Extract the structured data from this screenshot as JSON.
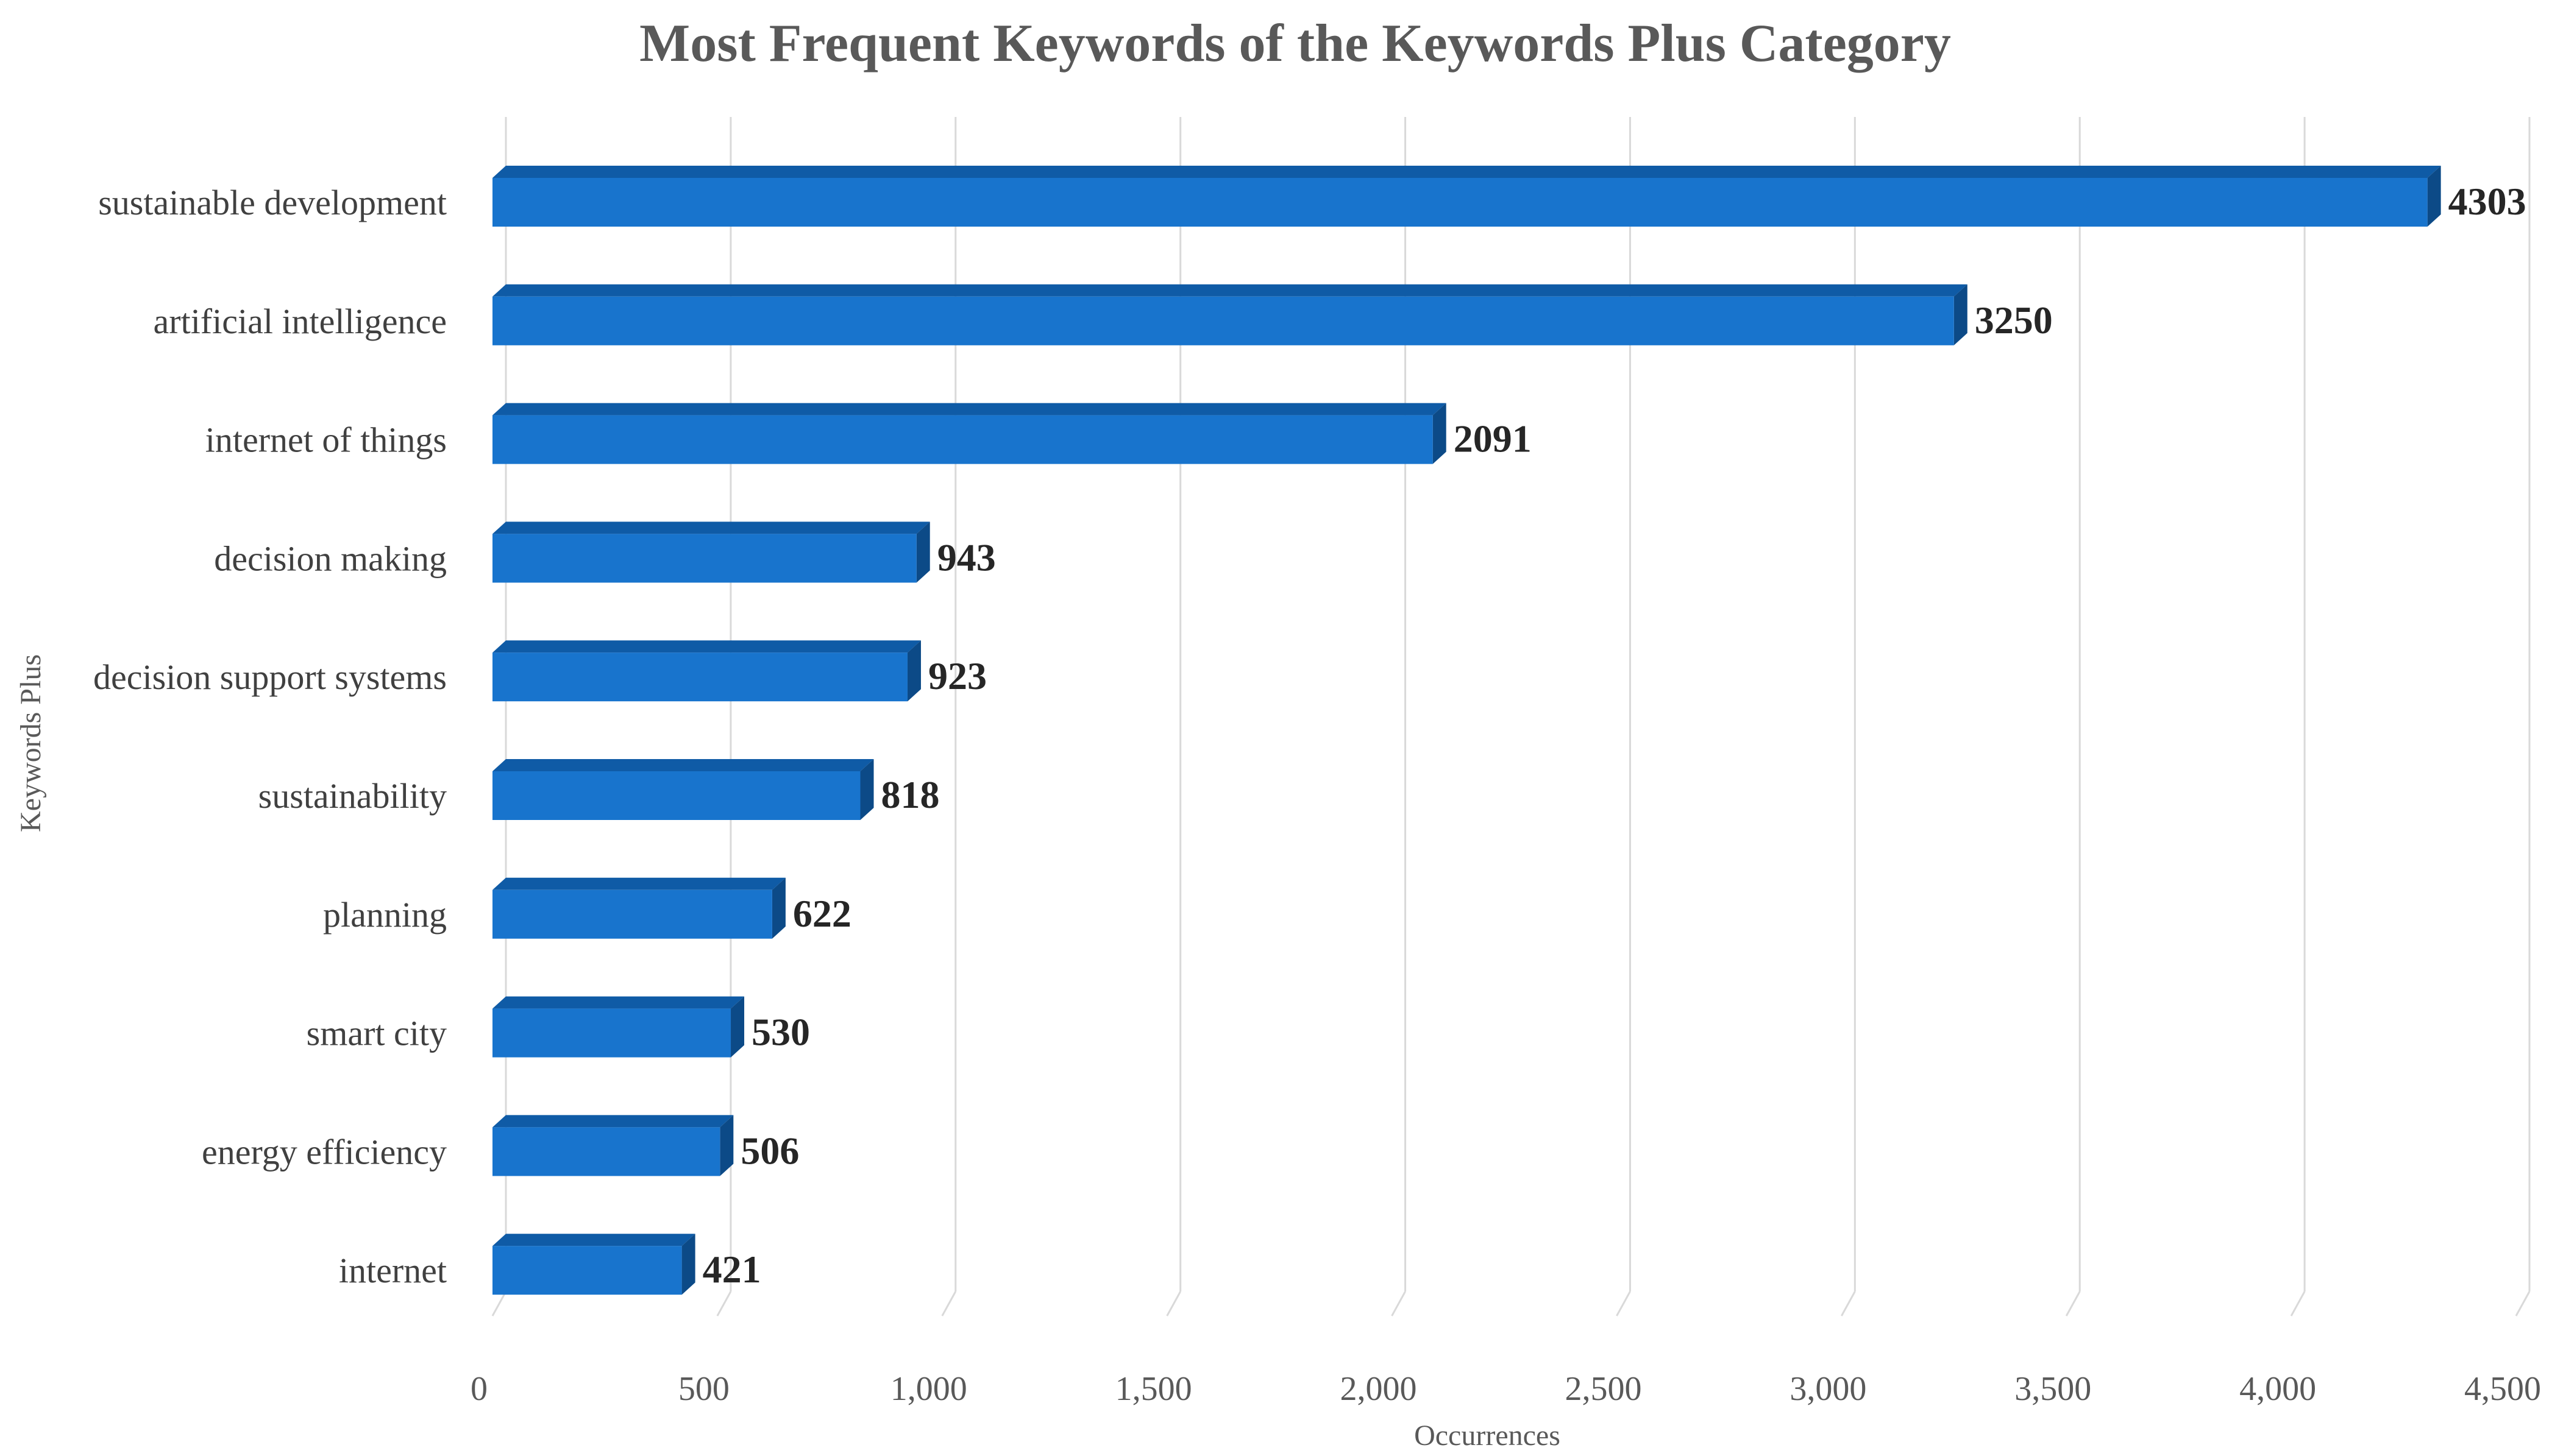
{
  "chart_data": {
    "type": "bar",
    "orientation": "horizontal",
    "title": "Most Frequent Keywords of the Keywords Plus Category",
    "xlabel": "Occurrences",
    "ylabel": "Keywords Plus",
    "xlim": [
      0,
      4500
    ],
    "xticks": [
      0,
      500,
      1000,
      1500,
      2000,
      2500,
      3000,
      3500,
      4000,
      4500
    ],
    "xtick_labels": [
      "0",
      "500",
      "1,000",
      "1,500",
      "2,000",
      "2,500",
      "3,000",
      "3,500",
      "4,000",
      "4,500"
    ],
    "grid": true,
    "legend": "none",
    "categories": [
      "sustainable development",
      "artificial intelligence",
      "internet of things",
      "decision making",
      "decision support systems",
      "sustainability",
      "planning",
      "smart city",
      "energy efficiency",
      "internet"
    ],
    "values": [
      4303,
      3250,
      2091,
      943,
      923,
      818,
      622,
      530,
      506,
      421
    ],
    "data_labels": [
      "4303",
      "3250",
      "2091",
      "943",
      "923",
      "818",
      "622",
      "530",
      "506",
      "421"
    ],
    "colors": {
      "bar_front": "#1874CD",
      "bar_top": "#0F5BA6",
      "bar_side": "#0C4A87"
    }
  }
}
